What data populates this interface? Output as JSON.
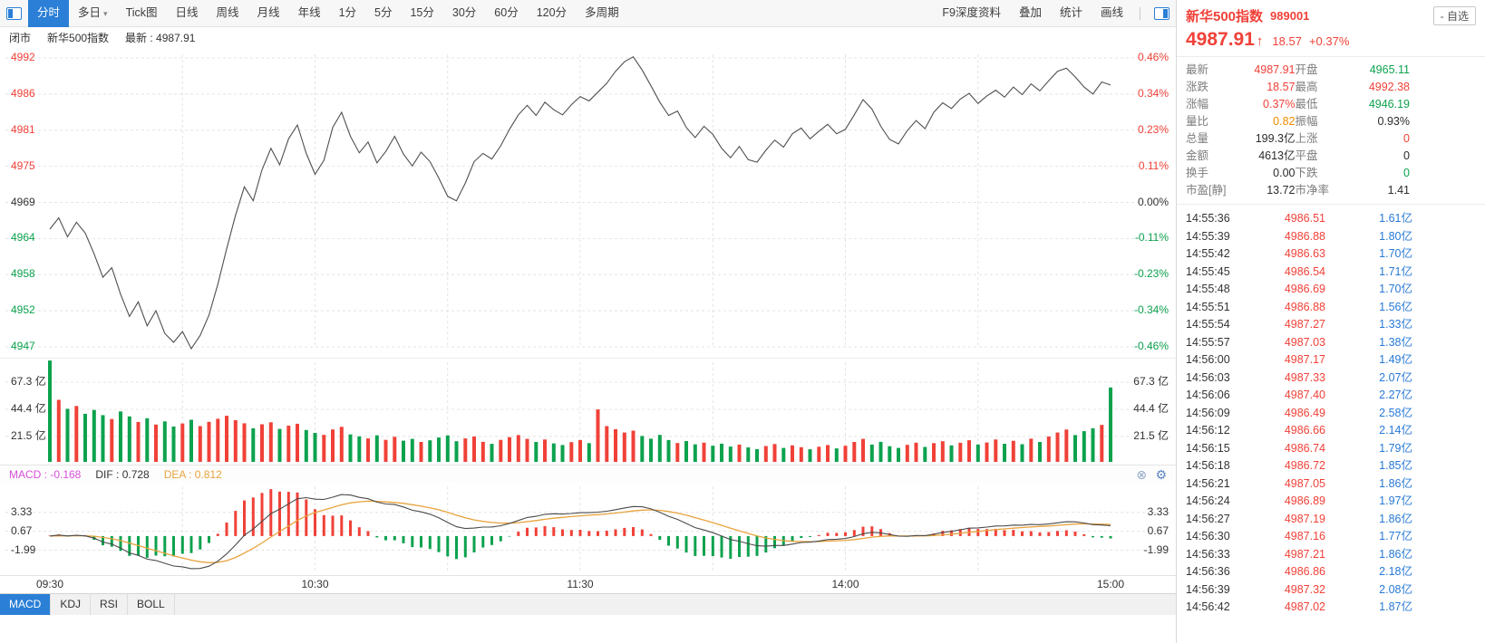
{
  "colors": {
    "up": "#f04138",
    "down": "#0ca24e",
    "accent_blue": "#2b7fd6",
    "volume_blue": "#2779d6",
    "dea_orange": "#e8a33d",
    "macd_magenta": "#d94fd9",
    "volume_ratio_orange": "#f08c00",
    "line_gray": "#4f4f4f",
    "text_dark": "#333333",
    "label_gray": "#7d7d7d"
  },
  "toolbar": {
    "tabs": [
      {
        "key": "fenshi",
        "label": "分时",
        "selected": true
      },
      {
        "key": "duori",
        "label": "多日",
        "caret": true
      },
      {
        "key": "tick",
        "label": "Tick图"
      },
      {
        "key": "daily",
        "label": "日线"
      },
      {
        "key": "weekly",
        "label": "周线"
      },
      {
        "key": "monthly",
        "label": "月线"
      },
      {
        "key": "yearly",
        "label": "年线"
      },
      {
        "key": "min1",
        "label": "1分"
      },
      {
        "key": "min5",
        "label": "5分"
      },
      {
        "key": "min15",
        "label": "15分"
      },
      {
        "key": "min30",
        "label": "30分"
      },
      {
        "key": "min60",
        "label": "60分"
      },
      {
        "key": "min120",
        "label": "120分"
      },
      {
        "key": "multi-period",
        "label": "多周期"
      }
    ],
    "right_items": [
      {
        "key": "f9-depth-info",
        "label": "F9深度资料"
      },
      {
        "key": "overlay",
        "label": "叠加"
      },
      {
        "key": "statistics",
        "label": "统计"
      },
      {
        "key": "draw-line",
        "label": "画线"
      }
    ]
  },
  "status_bar": {
    "market_state": "闭市",
    "index_name": "新华500指数",
    "latest": "最新 : 4987.91"
  },
  "macd_info": {
    "macd_text": "MACD : -0.168",
    "dif_text": "DIF : 0.728",
    "dea_text": "DEA : 0.812"
  },
  "bottom_tabs": [
    {
      "key": "macd",
      "label": "MACD",
      "selected": true
    },
    {
      "key": "kdj",
      "label": "KDJ"
    },
    {
      "key": "rsi",
      "label": "RSI"
    },
    {
      "key": "boll",
      "label": "BOLL"
    }
  ],
  "quote_panel": {
    "name": "新华500指数",
    "code": "989001",
    "watch_button": "- 自选",
    "price": "4987.91",
    "arrow": "↑",
    "change": "18.57",
    "change_pct": "+0.37%",
    "stats": [
      {
        "key": "latest",
        "label": "最新",
        "value": "4987.91",
        "color": "up"
      },
      {
        "key": "open",
        "label": "开盘",
        "value": "4965.11",
        "color": "down"
      },
      {
        "key": "change",
        "label": "涨跌",
        "value": "18.57",
        "color": "up"
      },
      {
        "key": "high",
        "label": "最高",
        "value": "4992.38",
        "color": "up"
      },
      {
        "key": "change-pct",
        "label": "涨幅",
        "value": "0.37%",
        "color": "up"
      },
      {
        "key": "low",
        "label": "最低",
        "value": "4946.19",
        "color": "down"
      },
      {
        "key": "volume-ratio",
        "label": "量比",
        "value": "0.82",
        "color": "warn"
      },
      {
        "key": "amplitude",
        "label": "振幅",
        "value": "0.93%",
        "color": "neutral"
      },
      {
        "key": "total-volume",
        "label": "总量",
        "value": "199.3亿",
        "color": "neutral"
      },
      {
        "key": "advancers",
        "label": "上涨",
        "value": "0",
        "color": "up"
      },
      {
        "key": "amount",
        "label": "金额",
        "value": "4613亿",
        "color": "neutral"
      },
      {
        "key": "flat",
        "label": "平盘",
        "value": "0",
        "color": "neutral"
      },
      {
        "key": "turnover",
        "label": "换手",
        "value": "0.00",
        "color": "neutral"
      },
      {
        "key": "decliners",
        "label": "下跌",
        "value": "0",
        "color": "down"
      },
      {
        "key": "pe-static",
        "label": "市盈[静]",
        "value": "13.72",
        "color": "neutral"
      },
      {
        "key": "pb-ratio",
        "label": "市净率",
        "value": "1.41",
        "color": "neutral"
      }
    ],
    "ticks": [
      {
        "time": "14:55:36",
        "price": "4986.51",
        "vol": "1.61亿",
        "color": "up"
      },
      {
        "time": "14:55:39",
        "price": "4986.88",
        "vol": "1.80亿",
        "color": "up"
      },
      {
        "time": "14:55:42",
        "price": "4986.63",
        "vol": "1.70亿",
        "color": "up"
      },
      {
        "time": "14:55:45",
        "price": "4986.54",
        "vol": "1.71亿",
        "color": "up"
      },
      {
        "time": "14:55:48",
        "price": "4986.69",
        "vol": "1.70亿",
        "color": "up"
      },
      {
        "time": "14:55:51",
        "price": "4986.88",
        "vol": "1.56亿",
        "color": "up"
      },
      {
        "time": "14:55:54",
        "price": "4987.27",
        "vol": "1.33亿",
        "color": "up"
      },
      {
        "time": "14:55:57",
        "price": "4987.03",
        "vol": "1.38亿",
        "color": "up"
      },
      {
        "time": "14:56:00",
        "price": "4987.17",
        "vol": "1.49亿",
        "color": "up"
      },
      {
        "time": "14:56:03",
        "price": "4987.33",
        "vol": "2.07亿",
        "color": "up"
      },
      {
        "time": "14:56:06",
        "price": "4987.40",
        "vol": "2.27亿",
        "color": "up"
      },
      {
        "time": "14:56:09",
        "price": "4986.49",
        "vol": "2.58亿",
        "color": "up"
      },
      {
        "time": "14:56:12",
        "price": "4986.66",
        "vol": "2.14亿",
        "color": "up"
      },
      {
        "time": "14:56:15",
        "price": "4986.74",
        "vol": "1.79亿",
        "color": "up"
      },
      {
        "time": "14:56:18",
        "price": "4986.72",
        "vol": "1.85亿",
        "color": "up"
      },
      {
        "time": "14:56:21",
        "price": "4987.05",
        "vol": "1.86亿",
        "color": "up"
      },
      {
        "time": "14:56:24",
        "price": "4986.89",
        "vol": "1.97亿",
        "color": "up"
      },
      {
        "time": "14:56:27",
        "price": "4987.19",
        "vol": "1.86亿",
        "color": "up"
      },
      {
        "time": "14:56:30",
        "price": "4987.16",
        "vol": "1.77亿",
        "color": "up"
      },
      {
        "time": "14:56:33",
        "price": "4987.21",
        "vol": "1.86亿",
        "color": "up"
      },
      {
        "time": "14:56:36",
        "price": "4986.86",
        "vol": "2.18亿",
        "color": "up"
      },
      {
        "time": "14:56:39",
        "price": "4987.32",
        "vol": "2.08亿",
        "color": "up"
      },
      {
        "time": "14:56:42",
        "price": "4987.02",
        "vol": "1.87亿",
        "color": "up"
      }
    ]
  },
  "chart_data": {
    "type": "line",
    "title": "新华500指数 分时走势",
    "prev_close": 4969.34,
    "session_minutes": 240,
    "minutes_per_point": 2,
    "x_tick_labels": [
      "09:30",
      "10:30",
      "11:30",
      "14:00",
      "15:00"
    ],
    "x_tick_minutes": [
      0,
      60,
      120,
      180,
      240
    ],
    "price_axis_labels": [
      "4992",
      "4986",
      "4981",
      "4975",
      "4969",
      "4964",
      "4958",
      "4952",
      "4947"
    ],
    "pct_axis_labels": [
      "0.46%",
      "0.34%",
      "0.23%",
      "0.11%",
      "0.00%",
      "-0.11%",
      "-0.23%",
      "-0.34%",
      "-0.46%"
    ],
    "price_range": [
      4946.48,
      4992.2
    ],
    "prices": [
      4965.11,
      4966.9,
      4963.9,
      4966.2,
      4964.5,
      4961.2,
      4957.5,
      4959.0,
      4954.8,
      4951.3,
      4953.6,
      4949.8,
      4952.2,
      4948.6,
      4947.2,
      4948.9,
      4946.19,
      4948.3,
      4951.5,
      4956.4,
      4962.0,
      4967.3,
      4971.8,
      4969.6,
      4974.5,
      4977.9,
      4975.3,
      4979.4,
      4981.6,
      4977.1,
      4973.8,
      4976.0,
      4981.2,
      4983.6,
      4979.8,
      4977.2,
      4978.9,
      4975.6,
      4977.4,
      4979.8,
      4977.0,
      4975.1,
      4977.3,
      4975.8,
      4973.2,
      4970.3,
      4969.6,
      4972.4,
      4975.8,
      4977.1,
      4976.2,
      4978.3,
      4980.9,
      4983.2,
      4984.7,
      4983.1,
      4985.2,
      4984.0,
      4983.2,
      4984.8,
      4986.1,
      4985.4,
      4986.8,
      4988.2,
      4990.1,
      4991.6,
      4992.38,
      4990.3,
      4987.8,
      4985.2,
      4983.1,
      4983.8,
      4981.2,
      4979.6,
      4981.4,
      4980.1,
      4977.9,
      4976.4,
      4978.2,
      4976.1,
      4975.7,
      4977.6,
      4979.2,
      4978.1,
      4980.2,
      4981.1,
      4979.4,
      4980.6,
      4981.7,
      4980.2,
      4980.9,
      4983.2,
      4985.6,
      4984.1,
      4981.4,
      4979.3,
      4978.6,
      4980.7,
      4982.3,
      4981.0,
      4983.6,
      4985.1,
      4984.2,
      4985.7,
      4986.6,
      4985.0,
      4986.2,
      4987.1,
      4986.0,
      4987.6,
      4986.4,
      4988.1,
      4987.0,
      4988.6,
      4990.1,
      4990.6,
      4989.2,
      4987.6,
      4986.5,
      4988.4,
      4987.91
    ],
    "volume_unit": "亿",
    "volume_axis_labels": [
      "67.3 亿",
      "44.4 亿",
      "21.5 亿"
    ],
    "volume_gridline_values": [
      67.3,
      44.4,
      21.5
    ],
    "volumes": [
      85.6,
      52.4,
      44.8,
      47.2,
      40.6,
      43.8,
      39.5,
      36.2,
      42.6,
      38.4,
      33.7,
      36.9,
      31.5,
      34.2,
      29.8,
      32.4,
      35.6,
      30.2,
      33.8,
      36.4,
      38.9,
      35.2,
      32.6,
      28.4,
      31.7,
      33.4,
      27.8,
      30.6,
      32.2,
      26.9,
      24.5,
      22.8,
      27.4,
      29.6,
      23.2,
      21.6,
      19.8,
      22.4,
      18.6,
      21.2,
      17.9,
      19.4,
      16.8,
      18.2,
      20.6,
      22.3,
      17.4,
      19.8,
      21.4,
      16.9,
      15.2,
      18.6,
      20.9,
      22.6,
      19.4,
      16.8,
      18.9,
      15.6,
      14.2,
      16.7,
      18.4,
      15.8,
      44.3,
      30.2,
      27.6,
      24.8,
      26.4,
      21.9,
      19.6,
      22.8,
      18.4,
      15.9,
      17.6,
      14.8,
      16.2,
      13.6,
      15.4,
      12.9,
      14.6,
      12.2,
      10.8,
      13.4,
      15.1,
      11.8,
      13.9,
      12.4,
      10.6,
      12.8,
      14.2,
      11.4,
      13.6,
      16.8,
      19.4,
      14.6,
      16.9,
      13.2,
      11.8,
      14.4,
      16.2,
      12.6,
      15.8,
      17.4,
      13.9,
      16.1,
      18.3,
      14.7,
      16.4,
      18.9,
      15.3,
      17.8,
      14.9,
      19.6,
      16.8,
      21.4,
      24.8,
      27.3,
      22.6,
      25.9,
      28.4,
      31.2,
      62.8
    ],
    "macd_axis_labels": [
      "3.33",
      "0.67",
      "-1.99"
    ],
    "macd_gridline_values": [
      3.33,
      0.67,
      -1.99
    ],
    "macd_latest": {
      "MACD": -0.168,
      "DIF": 0.728,
      "DEA": 0.812
    }
  }
}
